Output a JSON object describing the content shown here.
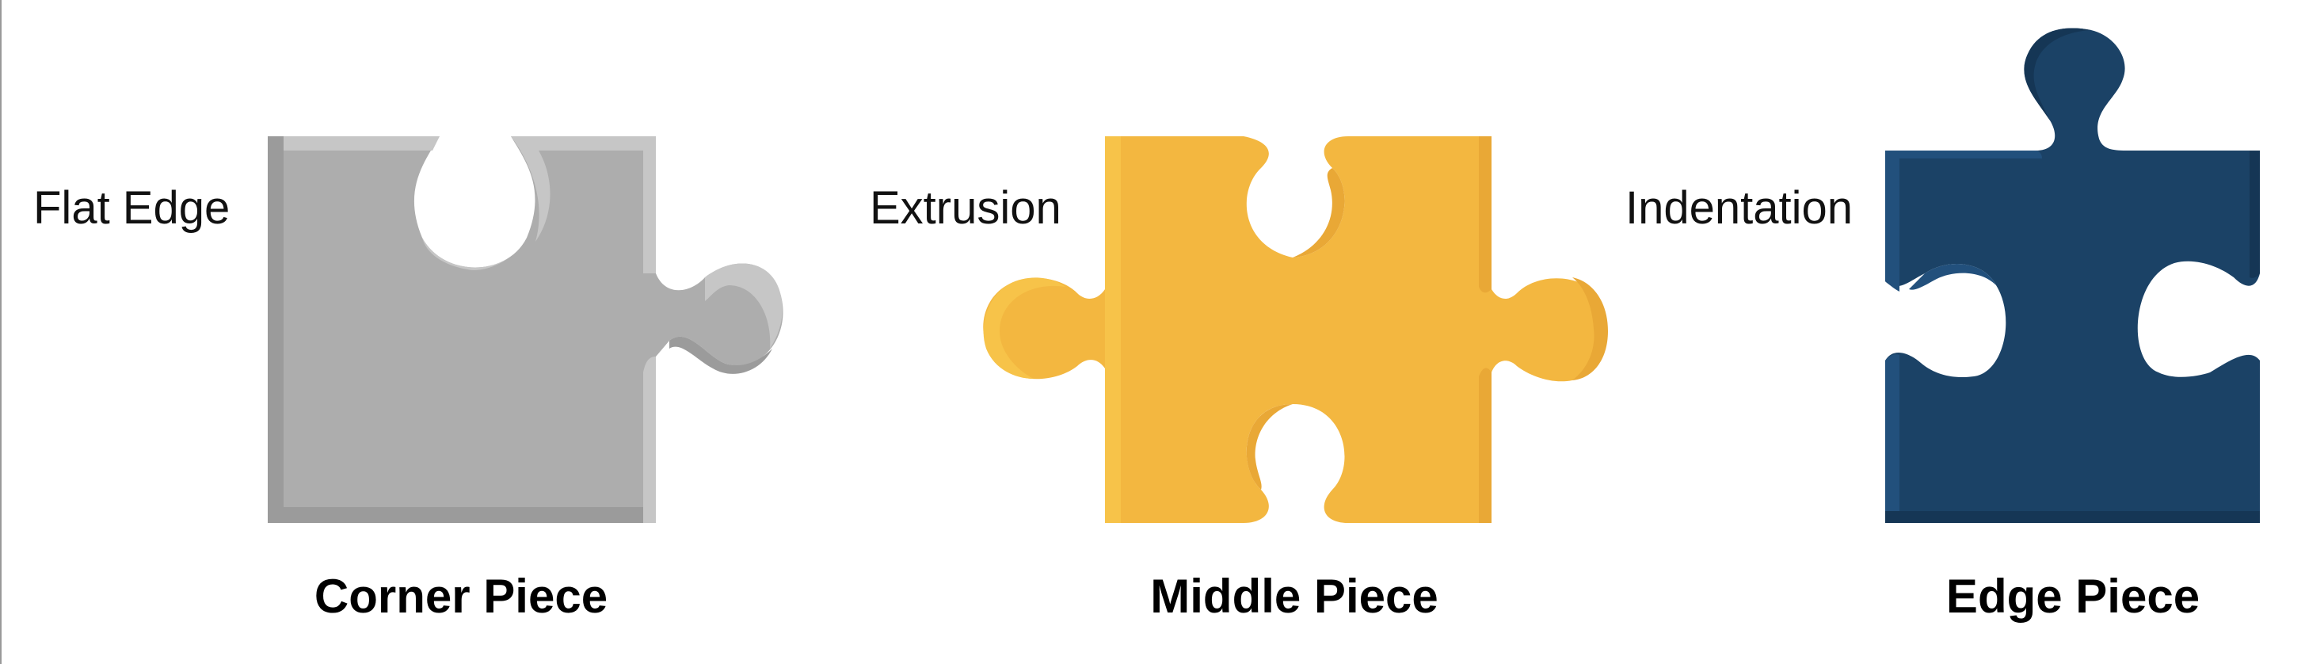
{
  "pieces": [
    {
      "id": "corner",
      "annotation": "Flat Edge",
      "caption": "Corner Piece",
      "colors": {
        "fill": "#adadad",
        "dark": "#9b9b9b",
        "light": "#c6c6c6"
      }
    },
    {
      "id": "middle",
      "annotation": "Extrusion",
      "caption": "Middle Piece",
      "colors": {
        "fill": "#f3b740",
        "dark": "#e9a836",
        "light": "#f7c349"
      }
    },
    {
      "id": "edge",
      "annotation": "Indentation",
      "caption": "Edge Piece",
      "colors": {
        "fill": "#1b4266",
        "dark": "#153655",
        "light": "#22507c"
      }
    }
  ]
}
